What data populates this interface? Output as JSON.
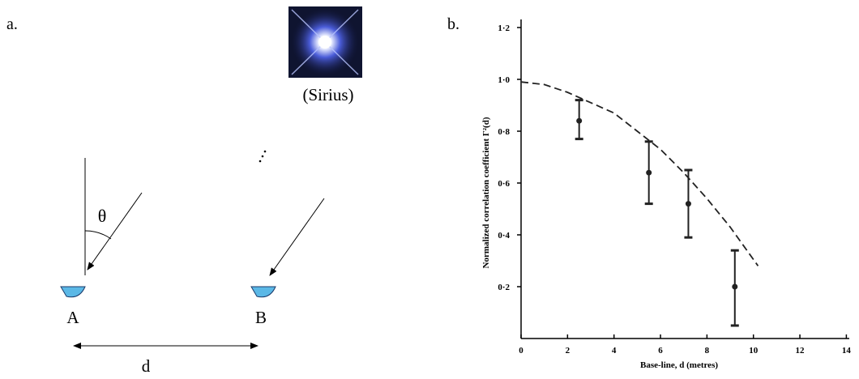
{
  "panel_a": {
    "label": "a.",
    "caption": "(Sirius)",
    "angle": "θ",
    "point_a": "A",
    "point_b": "B",
    "distance": "d"
  },
  "chart_data": {
    "type": "scatter",
    "label": "b.",
    "xlabel": "Base-line, d (metres)",
    "ylabel": "Normalized correlation coefficient Γ²(d)",
    "xlim": [
      0,
      14.3
    ],
    "ylim": [
      0,
      1.25
    ],
    "xticks": [
      0,
      2,
      4,
      6,
      8,
      10,
      12,
      14
    ],
    "yticks": [
      {
        "value": 0.2,
        "label": "0·2"
      },
      {
        "value": 0.4,
        "label": "0·4"
      },
      {
        "value": 0.6,
        "label": "0·6"
      },
      {
        "value": 0.8,
        "label": "0·8"
      },
      {
        "value": 1.0,
        "label": "1·0"
      },
      {
        "value": 1.2,
        "label": "1·2"
      }
    ],
    "color": "#222222",
    "series": [
      {
        "x": [
          2.5,
          5.5,
          7.2,
          9.2
        ],
        "values": [
          0.84,
          0.64,
          0.52,
          0.2
        ],
        "low": [
          0.77,
          0.52,
          0.39,
          0.05
        ],
        "high": [
          0.92,
          0.76,
          0.65,
          0.34
        ]
      },
      {
        "style": "dashed",
        "x": [
          0,
          1,
          2,
          3,
          4,
          5,
          6,
          7,
          8,
          9,
          10.2
        ],
        "values": [
          0.99,
          0.98,
          0.95,
          0.91,
          0.87,
          0.8,
          0.73,
          0.64,
          0.54,
          0.43,
          0.28
        ]
      }
    ]
  }
}
